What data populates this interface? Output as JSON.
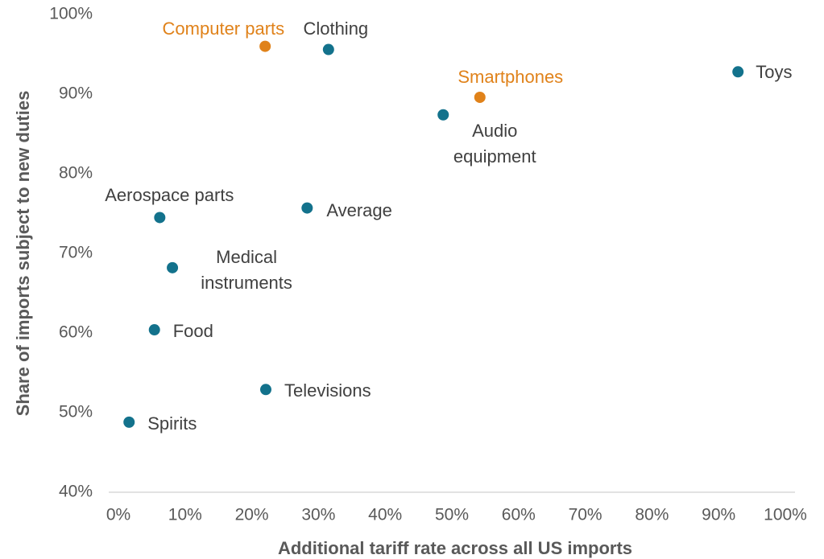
{
  "chart_data": {
    "type": "scatter",
    "xlabel": "Additional tariff rate across all US imports",
    "ylabel": "Share of imports subject to new duties",
    "labels": [
      "Computer parts",
      "Clothing",
      "Smartphones",
      "Toys",
      "Audio equipment",
      "Aerospace parts",
      "Average",
      "Medical instruments",
      "Food",
      "Televisions",
      "Spirits"
    ],
    "x": [
      22,
      31.5,
      54.2,
      92.9,
      48.7,
      6.2,
      28.3,
      8.1,
      5.4,
      22.1,
      1.6
    ],
    "values": [
      96,
      95.6,
      89.6,
      92.8,
      87.4,
      74.5,
      75.7,
      68.2,
      60.4,
      52.9,
      48.8
    ],
    "colors": [
      "#e0821a",
      "#13728c",
      "#e0821a",
      "#13728c",
      "#13728c",
      "#13728c",
      "#13728c",
      "#13728c",
      "#13728c",
      "#13728c",
      "#13728c"
    ],
    "xlim": [
      0,
      100
    ],
    "xticks": [
      {
        "value": 0,
        "label": "0%"
      },
      {
        "value": 10,
        "label": "10%"
      },
      {
        "value": 20,
        "label": "20%"
      },
      {
        "value": 30,
        "label": "30%"
      },
      {
        "value": 40,
        "label": "40%"
      },
      {
        "value": 50,
        "label": "50%"
      },
      {
        "value": 60,
        "label": "60%"
      },
      {
        "value": 70,
        "label": "70%"
      },
      {
        "value": 80,
        "label": "80%"
      },
      {
        "value": 90,
        "label": "90%"
      },
      {
        "value": 100,
        "label": "100%"
      }
    ],
    "ylim": [
      40,
      100
    ],
    "yticks": [
      {
        "value": 40,
        "label": "40%"
      },
      {
        "value": 50,
        "label": "50%"
      },
      {
        "value": 60,
        "label": "60%"
      },
      {
        "value": 70,
        "label": "70%"
      },
      {
        "value": 80,
        "label": "80%"
      },
      {
        "value": 90,
        "label": "90%"
      },
      {
        "value": 100,
        "label": "100%"
      }
    ],
    "grid": false
  }
}
